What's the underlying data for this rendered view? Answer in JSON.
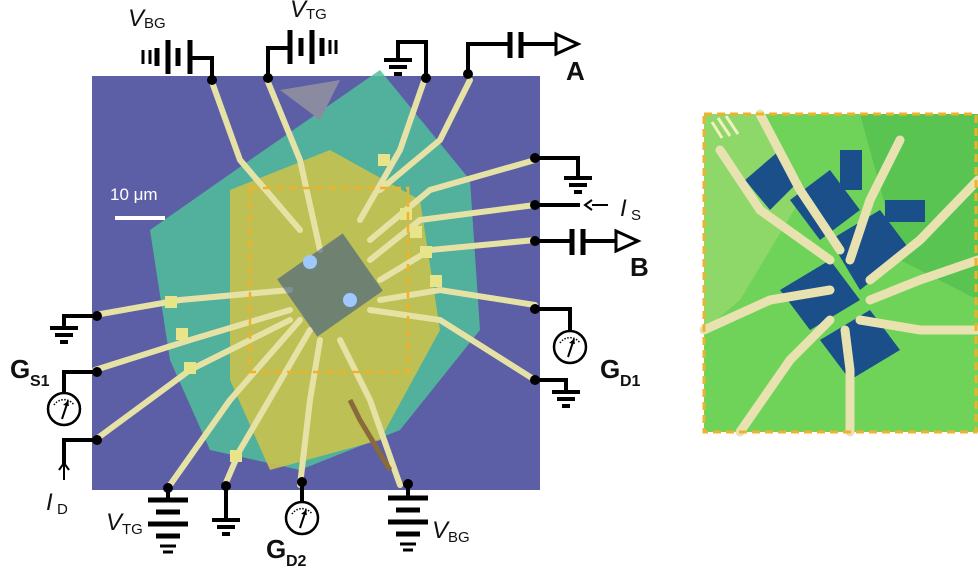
{
  "labels": {
    "vbg_top": {
      "main": "V",
      "sub": "BG"
    },
    "vtg_top": {
      "main": "V",
      "sub": "TG"
    },
    "output_a": "A",
    "output_b": "B",
    "is": {
      "main": "I",
      "sub": "S"
    },
    "id": {
      "main": "I",
      "sub": "D"
    },
    "gs1": {
      "main": "G",
      "sub": "S1"
    },
    "gd1": {
      "main": "G",
      "sub": "D1"
    },
    "gd2": {
      "main": "G",
      "sub": "D2"
    },
    "vtg_bottom": {
      "main": "V",
      "sub": "TG"
    },
    "vbg_bottom": {
      "main": "V",
      "sub": "BG"
    },
    "scale_bar": "10 μm"
  },
  "colors": {
    "substrate": "#5c5fa6",
    "flake_green": "#4fbf8f",
    "flake_yellow": "#c8c25a",
    "contact": "#e6e2a6",
    "highlight_box": "#f2b12a",
    "inset_green": "#6fd35a",
    "inset_blue": "#1a4f8a"
  },
  "icons": [
    "battery-icon",
    "ground-icon",
    "capacitor-icon",
    "output-arrow-icon",
    "meter-icon"
  ]
}
